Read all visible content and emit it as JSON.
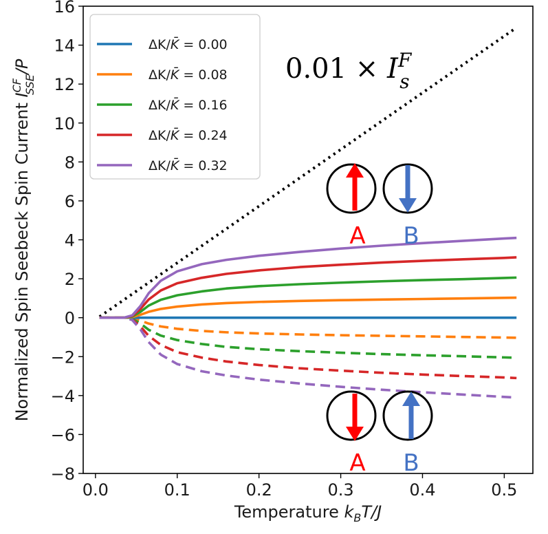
{
  "chart_data": {
    "type": "line",
    "xlabel_main": "Temperature ",
    "xlabel_math": "k",
    "xlabel_sub": "B",
    "xlabel_tail": "T/J",
    "ylabel_main": "Normalized Spin Seebeck Spin Current ",
    "ylabel_math": "I",
    "ylabel_sup": "CF",
    "ylabel_sub": "SSE",
    "ylabel_tail": "/P",
    "xlim": [
      -0.015,
      0.535
    ],
    "ylim": [
      -8,
      16
    ],
    "xticks": [
      0.0,
      0.1,
      0.2,
      0.3,
      0.4,
      0.5
    ],
    "xtick_labels": [
      "0.0",
      "0.1",
      "0.2",
      "0.3",
      "0.4",
      "0.5"
    ],
    "yticks": [
      -8,
      -6,
      -4,
      -2,
      0,
      2,
      4,
      6,
      8,
      10,
      12,
      14,
      16
    ],
    "ytick_labels": [
      "−8",
      "−6",
      "−4",
      "−2",
      "0",
      "2",
      "4",
      "6",
      "8",
      "10",
      "12",
      "14",
      "16"
    ],
    "grid": false,
    "legend_position": "top-left",
    "x": [
      0.005,
      0.02,
      0.035,
      0.045,
      0.055,
      0.065,
      0.08,
      0.1,
      0.13,
      0.16,
      0.2,
      0.25,
      0.3,
      0.35,
      0.4,
      0.45,
      0.5,
      0.515
    ],
    "series": [
      {
        "name": "ΔK/K̄ = 0.00",
        "legend_prefix": "ΔK/",
        "legend_bar": "K̄",
        "legend_value": " = 0.00",
        "color": "#1f77b4",
        "style": "solid",
        "values": [
          0,
          0,
          0,
          0,
          0,
          0,
          0,
          0,
          0,
          0,
          0,
          0,
          0,
          0,
          0,
          0,
          0,
          0
        ]
      },
      {
        "name": "ΔK/K̄ = 0.08",
        "legend_prefix": "ΔK/",
        "legend_bar": "K̄",
        "legend_value": " = 0.08",
        "color": "#ff7f0e",
        "style": "solid",
        "values": [
          0,
          0,
          0,
          0.03,
          0.15,
          0.3,
          0.45,
          0.57,
          0.68,
          0.75,
          0.81,
          0.86,
          0.9,
          0.93,
          0.96,
          0.99,
          1.02,
          1.03
        ]
      },
      {
        "name": "ΔK/K̄ = 0.16",
        "legend_prefix": "ΔK/",
        "legend_bar": "K̄",
        "legend_value": " = 0.16",
        "color": "#2ca02c",
        "style": "solid",
        "values": [
          0,
          0,
          0,
          0.06,
          0.3,
          0.62,
          0.92,
          1.15,
          1.35,
          1.5,
          1.62,
          1.72,
          1.8,
          1.87,
          1.93,
          1.98,
          2.04,
          2.06
        ]
      },
      {
        "name": "ΔK/K̄ = 0.24",
        "legend_prefix": "ΔK/",
        "legend_bar": "K̄",
        "legend_value": " = 0.24",
        "color": "#d62728",
        "style": "solid",
        "values": [
          0,
          0,
          0,
          0.09,
          0.45,
          0.93,
          1.4,
          1.77,
          2.05,
          2.25,
          2.43,
          2.6,
          2.72,
          2.83,
          2.92,
          3.0,
          3.07,
          3.1
        ]
      },
      {
        "name": "ΔK/K̄ = 0.32",
        "legend_prefix": "ΔK/",
        "legend_bar": "K̄",
        "legend_value": " = 0.32",
        "color": "#9467bd",
        "style": "solid",
        "values": [
          0,
          0,
          0,
          0.12,
          0.6,
          1.25,
          1.9,
          2.38,
          2.75,
          2.97,
          3.18,
          3.38,
          3.55,
          3.7,
          3.83,
          3.95,
          4.07,
          4.1
        ]
      },
      {
        "name": "",
        "color": "#ff7f0e",
        "style": "dashed",
        "values": [
          0,
          0,
          0,
          -0.03,
          -0.15,
          -0.3,
          -0.45,
          -0.57,
          -0.68,
          -0.75,
          -0.81,
          -0.86,
          -0.9,
          -0.93,
          -0.96,
          -0.99,
          -1.02,
          -1.03
        ]
      },
      {
        "name": "",
        "color": "#2ca02c",
        "style": "dashed",
        "values": [
          0,
          0,
          0,
          -0.06,
          -0.3,
          -0.62,
          -0.92,
          -1.15,
          -1.35,
          -1.5,
          -1.62,
          -1.72,
          -1.8,
          -1.87,
          -1.93,
          -1.98,
          -2.04,
          -2.06
        ]
      },
      {
        "name": "",
        "color": "#d62728",
        "style": "dashed",
        "values": [
          0,
          0,
          0,
          -0.09,
          -0.45,
          -0.93,
          -1.4,
          -1.77,
          -2.05,
          -2.25,
          -2.43,
          -2.6,
          -2.72,
          -2.83,
          -2.92,
          -3.0,
          -3.07,
          -3.1
        ]
      },
      {
        "name": "",
        "color": "#9467bd",
        "style": "dashed",
        "values": [
          0,
          0,
          0,
          -0.12,
          -0.6,
          -1.25,
          -1.9,
          -2.38,
          -2.75,
          -2.97,
          -3.18,
          -3.38,
          -3.55,
          -3.7,
          -3.83,
          -3.95,
          -4.07,
          -4.1
        ]
      }
    ],
    "reference_line": {
      "label_prefix": "0.01 × ",
      "label_math": "I",
      "label_sub": "s",
      "label_sup": "F",
      "color": "#000000",
      "style": "dotted",
      "x": [
        0.005,
        0.515
      ],
      "values": [
        0.05,
        14.9
      ]
    },
    "annotations": {
      "top_a_label": "A",
      "top_b_label": "B",
      "bottom_a_label": "A",
      "bottom_b_label": "B",
      "a_color": "#ff0000",
      "b_color": "#4472c4",
      "top_spins": {
        "A": "up",
        "B": "down"
      },
      "bottom_spins": {
        "A": "down",
        "B": "up"
      }
    }
  }
}
